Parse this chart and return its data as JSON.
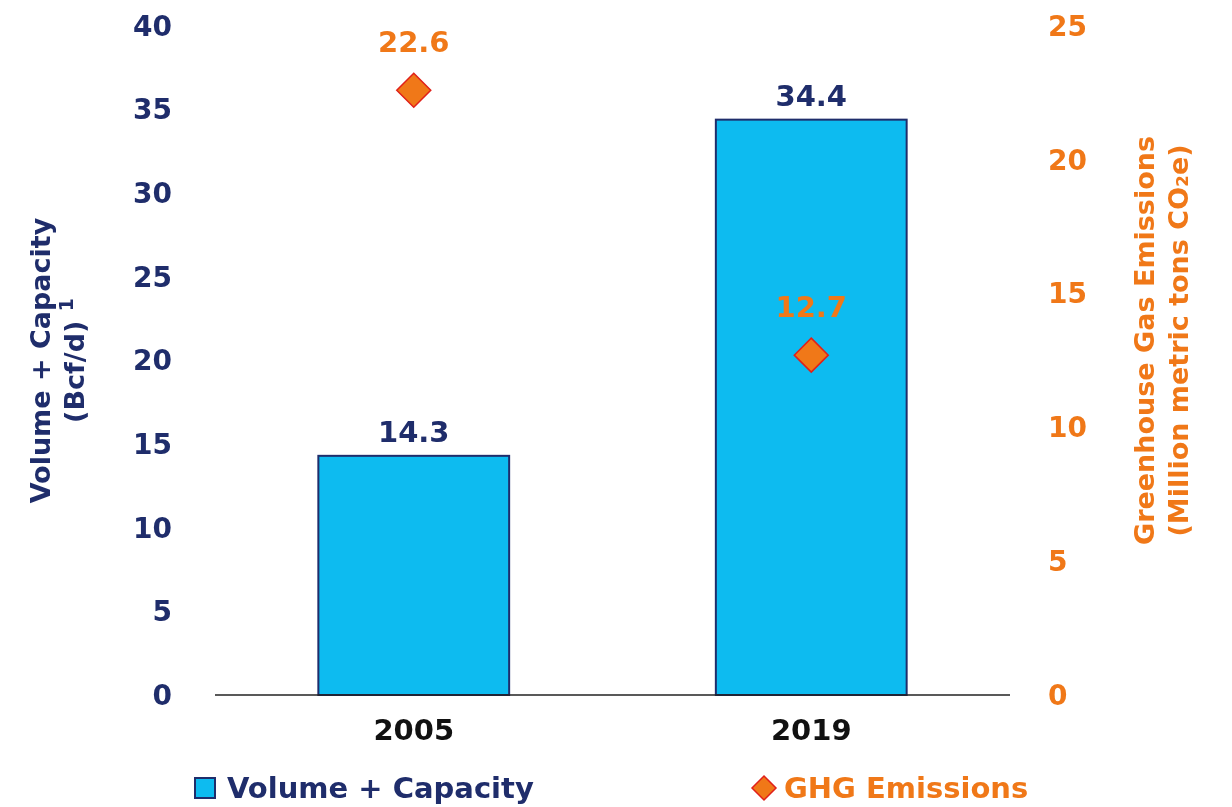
{
  "chart_data": {
    "type": "bar",
    "categories": [
      "2005",
      "2019"
    ],
    "series": [
      {
        "name": "Volume + Capacity",
        "color": "#0dbbf0",
        "values": [
          14.3,
          34.4
        ]
      },
      {
        "name": "GHG Emissions",
        "type": "scatter",
        "axis": "y2",
        "color": "#f07818",
        "values": [
          22.6,
          12.7
        ]
      }
    ],
    "ylabel": "Volume + Capacity\n(Bcf/d) $^{1}$",
    "y2label": "Greenhouse Gas Emissions\n(Million metric tons CO₂e)",
    "ylim": [
      0,
      40
    ],
    "yticks": [
      0,
      5,
      10,
      15,
      20,
      25,
      30,
      35,
      40
    ],
    "y2lim": [
      0,
      25
    ],
    "y2ticks": [
      0,
      5,
      10,
      15,
      20,
      25
    ],
    "marker": "diamond",
    "data_labels": true,
    "legend": "bottom",
    "grid": false
  }
}
